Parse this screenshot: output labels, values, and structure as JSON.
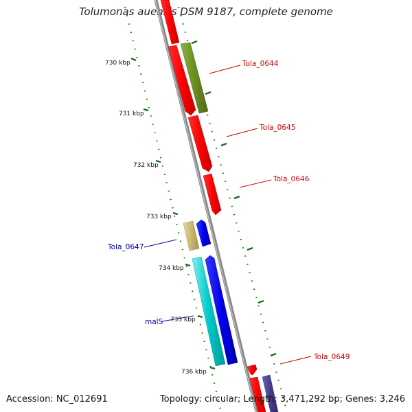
{
  "title": "Tolumonas auensis DSM 9187, complete genome",
  "accession": "Accession: NC_012691",
  "summary": "Topology: circular; Length: 3,471,292 bp; Genes: 3,246",
  "colors": {
    "backbone": "#8a8a8a",
    "ruler_tick": "#1a6e1a",
    "red_gene": "#ff0000",
    "olive_gene": "#6b8e23",
    "khaki_gene": "#c8b870",
    "blue_gene": "#0000ee",
    "cyan_gene": "#00c8c8",
    "slate_gene": "#483d8b",
    "red_label": "#cc0000",
    "blue_label": "#000099"
  },
  "ruler_labels": [
    "730 kbp",
    "731 kbp",
    "732 kbp",
    "733 kbp",
    "734 kbp",
    "735 kbp",
    "736 kbp"
  ],
  "gene_labels": [
    {
      "text": "Tola_0644",
      "color": "red"
    },
    {
      "text": "Tola_0645",
      "color": "red"
    },
    {
      "text": "Tola_0646",
      "color": "red"
    },
    {
      "text": "Tola_0647",
      "color": "blue"
    },
    {
      "text": "malS",
      "color": "blue"
    },
    {
      "text": "Tola_0649",
      "color": "red"
    }
  ]
}
